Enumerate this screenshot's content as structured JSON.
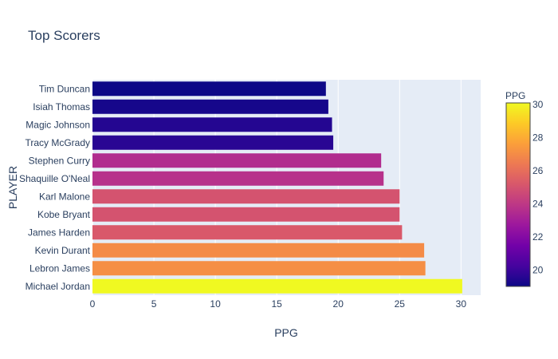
{
  "chart_data": {
    "type": "bar",
    "orientation": "horizontal",
    "title": "Top Scorers",
    "xlabel": "PPG",
    "ylabel": "PLAYER",
    "xlim": [
      0,
      31.6
    ],
    "x_ticks": [
      0,
      5,
      10,
      15,
      20,
      25,
      30
    ],
    "grid": true,
    "categories": [
      "Tim Duncan",
      "Isiah Thomas",
      "Magic Johnson",
      "Tracy McGrady",
      "Stephen Curry",
      "Shaquille O'Neal",
      "Karl Malone",
      "Kobe Bryant",
      "James Harden",
      "Kevin Durant",
      "Lebron James",
      "Michael Jordan"
    ],
    "values": [
      19.0,
      19.2,
      19.5,
      19.6,
      23.5,
      23.7,
      25.0,
      25.0,
      25.2,
      27.0,
      27.1,
      30.1
    ],
    "colorbar": {
      "title": "PPG",
      "range": [
        19.0,
        30.1
      ],
      "ticks": [
        20,
        22,
        24,
        26,
        28,
        30
      ],
      "colorscale": [
        "#0d0887",
        "#46039f",
        "#7201a8",
        "#9c179e",
        "#bd3786",
        "#d8576b",
        "#ed7953",
        "#fb9f3a",
        "#fdca26",
        "#f0f921"
      ]
    }
  }
}
